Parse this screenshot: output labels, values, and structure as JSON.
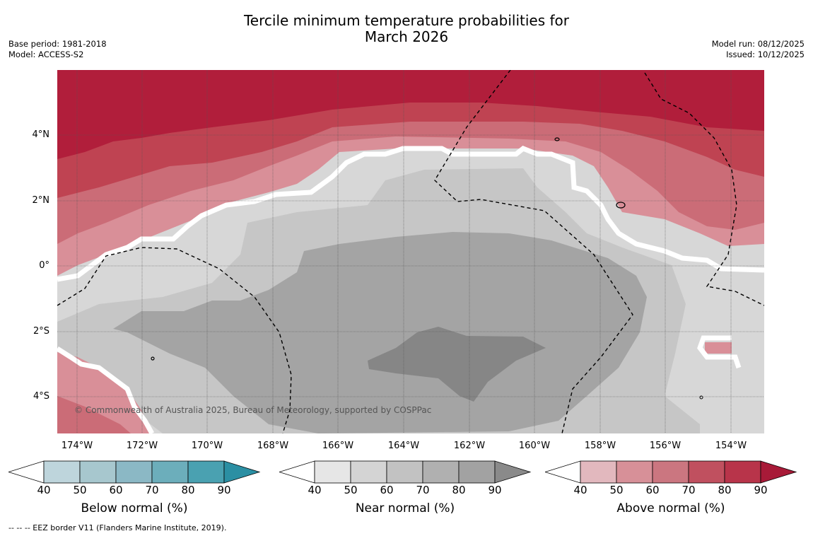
{
  "header": {
    "title_line1": "Tercile minimum temperature probabilities for",
    "title_line2": "March 2026",
    "base_period": "Base period: 1981-2018",
    "model": "Model: ACCESS-S2",
    "model_run": "Model run: 08/12/2025",
    "issued": "Issued: 10/12/2025"
  },
  "map": {
    "lat_labels": [
      "4°N",
      "2°N",
      "0°",
      "2°S",
      "4°S"
    ],
    "lon_labels": [
      "174°W",
      "172°W",
      "170°W",
      "168°W",
      "166°W",
      "164°W",
      "162°W",
      "160°W",
      "158°W",
      "156°W",
      "154°W"
    ],
    "copyright": "© Commonwealth of Australia 2025, Bureau of Meteorology, supported by COSPPac"
  },
  "legends": [
    {
      "title": "Below normal (%)",
      "ticks": [
        "40",
        "50",
        "60",
        "70",
        "80",
        "90"
      ],
      "colors": [
        "#ffffff",
        "#bed5dc",
        "#a7c7ce",
        "#8bb8c5",
        "#6caebb",
        "#4aa1b1",
        "#2b8fa3"
      ]
    },
    {
      "title": "Near normal (%)",
      "ticks": [
        "40",
        "50",
        "60",
        "70",
        "80",
        "90"
      ],
      "colors": [
        "#ffffff",
        "#e6e6e6",
        "#d4d4d4",
        "#c2c2c2",
        "#b0b0b0",
        "#a2a2a2",
        "#8a8a8a"
      ]
    },
    {
      "title": "Above normal (%)",
      "ticks": [
        "40",
        "50",
        "60",
        "70",
        "80",
        "90"
      ],
      "colors": [
        "#ffffff",
        "#e2b8be",
        "#d79098",
        "#cb7680",
        "#c0505f",
        "#b8344a",
        "#a81a38"
      ]
    }
  ],
  "footnote": "--  --  -- EEZ border V11 (Flanders Marine Institute, 2019)."
}
